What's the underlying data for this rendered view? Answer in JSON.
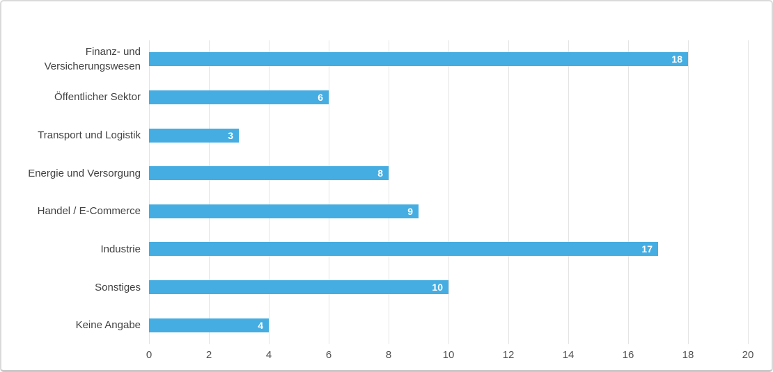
{
  "chart_data": {
    "type": "bar",
    "orientation": "horizontal",
    "title": "",
    "xlabel": "",
    "ylabel": "",
    "categories": [
      "Finanz- und Versicherungswesen",
      "Öffentlicher Sektor",
      "Transport und Logistik",
      "Energie und Versorgung",
      "Handel / E-Commerce",
      "Industrie",
      "Sonstiges",
      "Keine Angabe"
    ],
    "values": [
      18,
      6,
      3,
      8,
      9,
      17,
      10,
      4
    ],
    "xlim": [
      0,
      20
    ],
    "x_ticks": [
      0,
      2,
      4,
      6,
      8,
      10,
      12,
      14,
      16,
      18,
      20
    ],
    "grid": true,
    "legend": false,
    "bar_color": "#45ade1",
    "value_label_color": "#ffffff",
    "gridline_color": "#e4e4e4",
    "category_label_color": "#414141",
    "tick_label_color": "#4f4f4f"
  }
}
